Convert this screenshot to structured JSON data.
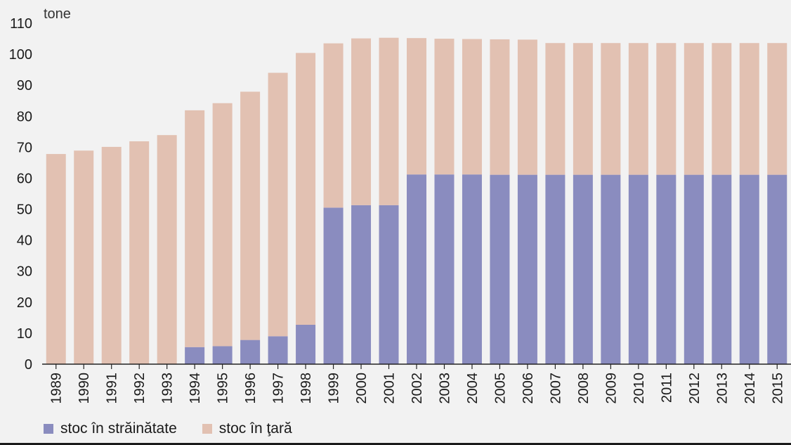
{
  "chart_data": {
    "type": "bar",
    "stacked": true,
    "unit_label": "tone",
    "categories": [
      "1989",
      "1990",
      "1991",
      "1992",
      "1993",
      "1994",
      "1995",
      "1996",
      "1997",
      "1998",
      "1999",
      "2000",
      "2001",
      "2002",
      "2003",
      "2004",
      "2005",
      "2006",
      "2007",
      "2008",
      "2009",
      "2010",
      "2011",
      "2012",
      "2013",
      "2014",
      "2015"
    ],
    "series": [
      {
        "name": "stoc în străinătate",
        "color": "#8a8cbf",
        "values": [
          0,
          0,
          0,
          0,
          0,
          5.5,
          5.8,
          7.8,
          9.0,
          12.7,
          50.5,
          51.3,
          51.3,
          61.2,
          61.2,
          61.2,
          61.1,
          61.1,
          61.1,
          61.1,
          61.1,
          61.1,
          61.1,
          61.1,
          61.1,
          61.1,
          61.1
        ]
      },
      {
        "name": "stoc în ţară",
        "color": "#e2c1b2",
        "values": [
          67.8,
          68.9,
          70.1,
          71.9,
          73.9,
          76.4,
          78.4,
          80.1,
          85.0,
          87.7,
          53.0,
          53.8,
          54.0,
          44.0,
          43.8,
          43.7,
          43.7,
          43.6,
          42.5,
          42.5,
          42.5,
          42.5,
          42.5,
          42.5,
          42.5,
          42.5,
          42.5
        ]
      }
    ],
    "y_ticks": [
      "0",
      "10",
      "20",
      "30",
      "40",
      "50",
      "60",
      "70",
      "80",
      "90",
      "100",
      "110"
    ],
    "ylim": [
      0,
      110
    ],
    "legend_position": "bottom-left",
    "grid": false
  }
}
